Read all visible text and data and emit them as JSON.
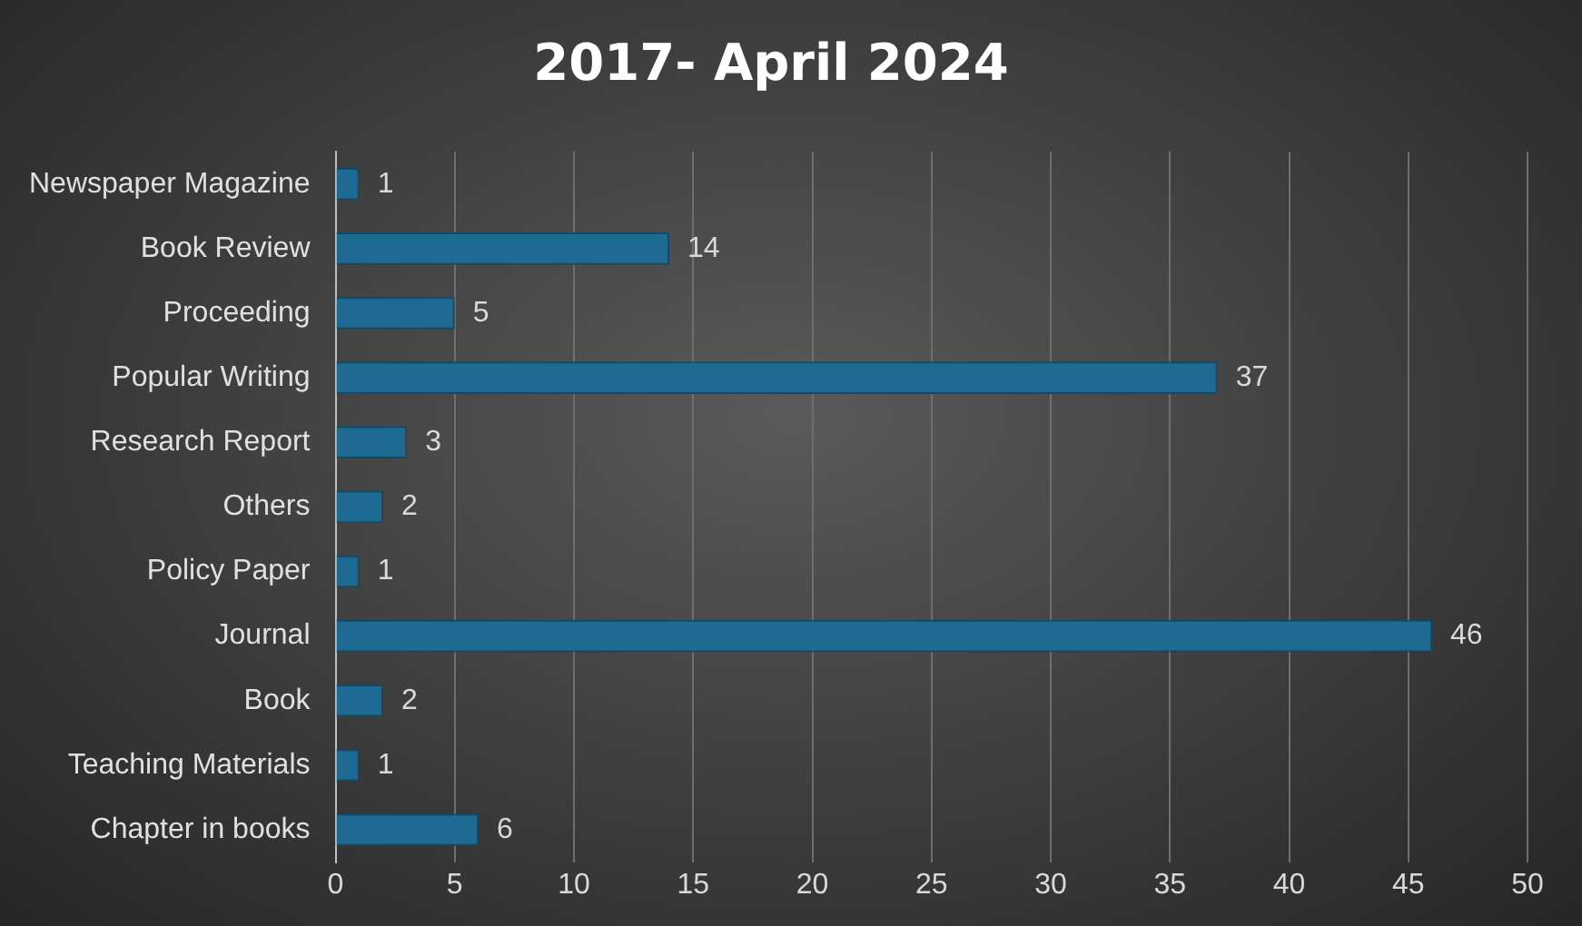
{
  "chart_data": {
    "type": "bar",
    "orientation": "horizontal",
    "title": "2017- April 2024",
    "categories": [
      "Newspaper Magazine",
      "Book Review",
      "Proceeding",
      "Popular Writing",
      "Research Report",
      "Others",
      "Policy Paper",
      "Journal",
      "Book",
      "Teaching Materials",
      "Chapter in books"
    ],
    "values": [
      1,
      14,
      5,
      37,
      3,
      2,
      1,
      46,
      2,
      1,
      6
    ],
    "color": "#1d6a93",
    "xlim": [
      0,
      50
    ],
    "xticks": [
      0,
      5,
      10,
      15,
      20,
      25,
      30,
      35,
      40,
      45,
      50
    ],
    "grid": "x",
    "data_labels": true
  }
}
